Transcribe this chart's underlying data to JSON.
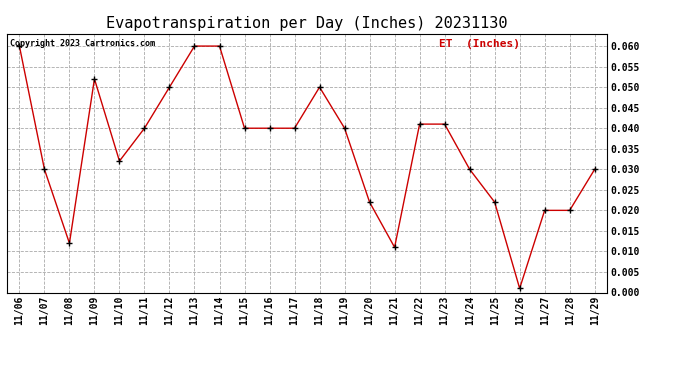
{
  "title": "Evapotranspiration per Day (Inches) 20231130",
  "copyright_text": "Copyright 2023 Cartronics.com",
  "legend_label": "ET  (Inches)",
  "dates": [
    "11/06",
    "11/07",
    "11/08",
    "11/09",
    "11/10",
    "11/11",
    "11/12",
    "11/13",
    "11/14",
    "11/15",
    "11/16",
    "11/17",
    "11/18",
    "11/19",
    "11/20",
    "11/21",
    "11/22",
    "11/23",
    "11/24",
    "11/25",
    "11/26",
    "11/27",
    "11/28",
    "11/29"
  ],
  "values": [
    0.06,
    0.03,
    0.012,
    0.052,
    0.032,
    0.04,
    0.05,
    0.06,
    0.06,
    0.04,
    0.04,
    0.04,
    0.05,
    0.04,
    0.022,
    0.011,
    0.041,
    0.041,
    0.03,
    0.022,
    0.001,
    0.02,
    0.02,
    0.03
  ],
  "ylim": [
    0.0,
    0.063
  ],
  "yticks": [
    0.0,
    0.005,
    0.01,
    0.015,
    0.02,
    0.025,
    0.03,
    0.035,
    0.04,
    0.045,
    0.05,
    0.055,
    0.06
  ],
  "line_color": "#cc0000",
  "marker_color": "#000000",
  "marker_style": "+",
  "background_color": "#ffffff",
  "grid_color": "#aaaaaa",
  "title_fontsize": 11,
  "tick_fontsize": 7,
  "copyright_fontsize": 6,
  "legend_fontsize": 8,
  "legend_color": "#cc0000"
}
